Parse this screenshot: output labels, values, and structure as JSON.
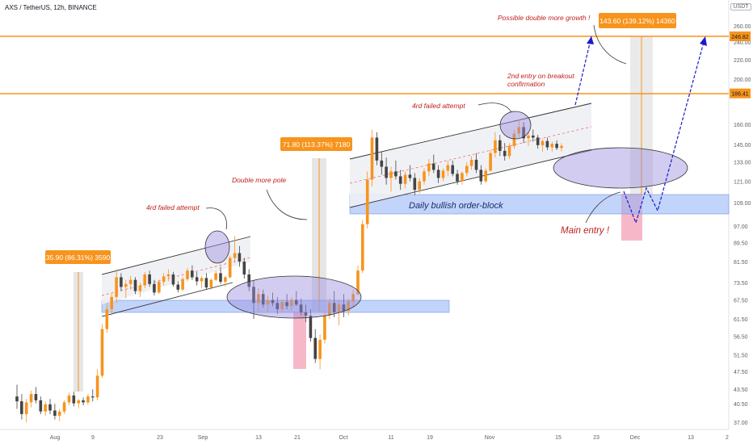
{
  "header": {
    "ticker_label": "AXS / TetherUS, 12h, BINANCE",
    "unit_badge": "USDT"
  },
  "colors": {
    "bull": "#f7941d",
    "bear": "#444444",
    "resistance": "#f7941d",
    "orderblock": "#8fb0f5",
    "ellipse": "#9c8fe0",
    "annotation_text": "#c0201c",
    "projection": "#1a1acc",
    "measure_label_bg": "#f7941d",
    "pole_bg": "#dcdcdc",
    "drawdown_bg": "#f3a0b6"
  },
  "chart_data": {
    "type": "candlestick",
    "title": "AXS / TetherUS, 12h, BINANCE",
    "y_scale": "log",
    "y_ticks": [
      "260.00",
      "240.00",
      "220.00",
      "200.00",
      "160.00",
      "145.00",
      "133.00",
      "121.00",
      "109.00",
      "97.00",
      "89.50",
      "81.50",
      "73.50",
      "67.50",
      "61.50",
      "56.50",
      "51.50",
      "47.50",
      "43.50",
      "40.50",
      "37.00"
    ],
    "y_tick_values": [
      260,
      240,
      220,
      200,
      160,
      145,
      133,
      121,
      109,
      97,
      89.5,
      81.5,
      73.5,
      67.5,
      61.5,
      56.5,
      51.5,
      47.5,
      43.5,
      40.5,
      37
    ],
    "x_ticks": [
      "Aug",
      "9",
      "23",
      "Sep",
      "13",
      "21",
      "Oct",
      "11",
      "19",
      "Nov",
      "15",
      "23",
      "Dec",
      "13",
      "2"
    ],
    "price_markers": [
      {
        "label": "246.82",
        "value": 246.82
      },
      {
        "label": "186.41",
        "value": 186.41
      }
    ],
    "series": [
      {
        "name": "",
        "ohlc": [
          [
            42.0,
            44.5,
            39.5,
            41.0
          ],
          [
            41.0,
            42.5,
            37.5,
            38.5
          ],
          [
            38.5,
            41.5,
            37.0,
            40.8
          ],
          [
            40.8,
            43.2,
            39.8,
            42.5
          ],
          [
            42.5,
            44.0,
            40.6,
            41.2
          ],
          [
            41.2,
            42.0,
            38.5,
            39.0
          ],
          [
            39.0,
            41.0,
            38.2,
            40.4
          ],
          [
            40.4,
            41.5,
            38.5,
            39.2
          ],
          [
            39.2,
            40.5,
            37.5,
            38.2
          ],
          [
            38.2,
            39.5,
            37.2,
            39.0
          ],
          [
            39.0,
            41.2,
            38.5,
            40.8
          ],
          [
            40.8,
            42.8,
            40.2,
            42.2
          ],
          [
            42.2,
            43.0,
            40.0,
            40.6
          ],
          [
            40.6,
            41.5,
            39.6,
            41.2
          ],
          [
            41.2,
            41.8,
            40.2,
            40.8
          ],
          [
            40.8,
            42.5,
            40.3,
            42.0
          ],
          [
            42.0,
            43.5,
            41.0,
            41.8
          ],
          [
            41.8,
            48.0,
            41.2,
            46.5
          ],
          [
            46.5,
            60.0,
            46.0,
            58.5
          ],
          [
            58.5,
            66.5,
            57.5,
            64.5
          ],
          [
            64.5,
            70.0,
            62.5,
            68.5
          ],
          [
            68.5,
            78.5,
            66.5,
            75.5
          ],
          [
            75.5,
            77.0,
            70.5,
            72.0
          ],
          [
            72.0,
            74.5,
            68.0,
            73.0
          ],
          [
            73.0,
            76.0,
            71.0,
            74.5
          ],
          [
            74.5,
            75.5,
            69.5,
            70.5
          ],
          [
            70.5,
            73.5,
            68.5,
            72.5
          ],
          [
            72.5,
            77.5,
            71.5,
            76.5
          ],
          [
            76.5,
            78.0,
            72.0,
            73.0
          ],
          [
            73.0,
            74.5,
            69.0,
            70.0
          ],
          [
            70.0,
            74.5,
            69.5,
            73.8
          ],
          [
            73.8,
            77.0,
            72.5,
            75.8
          ],
          [
            75.8,
            78.5,
            74.0,
            76.5
          ],
          [
            76.5,
            77.5,
            72.0,
            72.8
          ],
          [
            72.8,
            74.0,
            70.0,
            71.0
          ],
          [
            71.0,
            75.5,
            70.5,
            74.8
          ],
          [
            74.8,
            79.0,
            74.0,
            78.0
          ],
          [
            78.0,
            80.0,
            74.5,
            75.5
          ],
          [
            75.5,
            77.5,
            72.5,
            74.0
          ],
          [
            74.0,
            76.0,
            71.5,
            75.2
          ],
          [
            75.2,
            77.0,
            71.0,
            71.8
          ],
          [
            71.8,
            75.0,
            71.0,
            74.5
          ],
          [
            74.5,
            78.0,
            74.0,
            77.0
          ],
          [
            77.0,
            79.5,
            73.0,
            73.8
          ],
          [
            73.8,
            76.0,
            72.0,
            75.5
          ],
          [
            75.5,
            84.0,
            75.0,
            83.0
          ],
          [
            83.0,
            92.5,
            81.0,
            85.0
          ],
          [
            85.0,
            88.0,
            79.5,
            81.5
          ],
          [
            81.5,
            83.0,
            75.0,
            76.5
          ],
          [
            76.5,
            78.5,
            70.5,
            72.0
          ],
          [
            72.0,
            74.5,
            61.5,
            66.5
          ],
          [
            66.5,
            71.5,
            63.5,
            69.5
          ],
          [
            69.5,
            71.0,
            65.0,
            66.0
          ],
          [
            66.0,
            69.0,
            63.5,
            67.5
          ],
          [
            67.5,
            70.0,
            65.5,
            66.5
          ],
          [
            66.5,
            68.5,
            63.0,
            64.5
          ],
          [
            64.5,
            67.5,
            63.5,
            66.8
          ],
          [
            66.8,
            69.5,
            64.5,
            65.5
          ],
          [
            65.5,
            68.5,
            64.0,
            67.5
          ],
          [
            67.5,
            70.5,
            65.5,
            66.0
          ],
          [
            66.0,
            68.0,
            62.5,
            63.5
          ],
          [
            63.5,
            66.0,
            60.5,
            62.5
          ],
          [
            62.5,
            64.5,
            55.0,
            56.0
          ],
          [
            56.0,
            58.5,
            49.5,
            50.5
          ],
          [
            50.5,
            57.0,
            48.0,
            55.5
          ],
          [
            55.5,
            64.0,
            54.5,
            62.5
          ],
          [
            62.5,
            68.0,
            61.5,
            66.5
          ],
          [
            66.5,
            70.5,
            62.0,
            63.5
          ],
          [
            63.5,
            67.5,
            59.5,
            66.0
          ],
          [
            66.0,
            69.5,
            62.0,
            64.0
          ],
          [
            64.0,
            68.0,
            62.5,
            67.0
          ],
          [
            67.0,
            71.0,
            65.0,
            69.5
          ],
          [
            69.5,
            80.0,
            69.0,
            78.0
          ],
          [
            78.0,
            100.0,
            77.0,
            98.0
          ],
          [
            98.0,
            127.0,
            96.0,
            122.0
          ],
          [
            122.0,
            156.0,
            118.0,
            150.0
          ],
          [
            150.0,
            154.0,
            131.0,
            134.0
          ],
          [
            134.0,
            140.0,
            125.0,
            130.0
          ],
          [
            130.0,
            136.0,
            119.0,
            123.0
          ],
          [
            123.0,
            130.0,
            115.0,
            127.0
          ],
          [
            127.0,
            134.0,
            122.0,
            124.0
          ],
          [
            124.0,
            128.0,
            116.0,
            119.5
          ],
          [
            119.5,
            127.0,
            117.0,
            125.0
          ],
          [
            125.0,
            131.0,
            121.0,
            123.0
          ],
          [
            123.0,
            126.0,
            113.0,
            116.0
          ],
          [
            116.0,
            123.0,
            114.0,
            121.0
          ],
          [
            121.0,
            129.0,
            119.0,
            127.0
          ],
          [
            127.0,
            135.0,
            124.0,
            132.0
          ],
          [
            132.0,
            138.0,
            126.0,
            128.0
          ],
          [
            128.0,
            131.0,
            120.0,
            123.0
          ],
          [
            123.0,
            129.0,
            121.0,
            127.5
          ],
          [
            127.5,
            134.0,
            124.0,
            131.0
          ],
          [
            131.0,
            134.0,
            124.0,
            125.5
          ],
          [
            125.5,
            128.0,
            119.0,
            121.0
          ],
          [
            121.0,
            127.0,
            119.0,
            126.0
          ],
          [
            126.0,
            133.0,
            124.0,
            130.5
          ],
          [
            130.5,
            137.0,
            128.0,
            134.5
          ],
          [
            134.5,
            139.0,
            126.0,
            128.0
          ],
          [
            128.0,
            131.0,
            119.0,
            121.0
          ],
          [
            121.0,
            129.0,
            120.0,
            127.5
          ],
          [
            127.5,
            141.0,
            127.0,
            139.0
          ],
          [
            139.0,
            154.0,
            136.0,
            148.0
          ],
          [
            148.0,
            152.0,
            137.0,
            140.5
          ],
          [
            140.5,
            146.0,
            134.0,
            137.0
          ],
          [
            137.0,
            146.0,
            135.0,
            144.0
          ],
          [
            144.0,
            156.0,
            142.0,
            153.0
          ],
          [
            153.0,
            164.0,
            150.0,
            158.0
          ],
          [
            158.0,
            162.0,
            146.0,
            149.5
          ],
          [
            149.5,
            154.0,
            144.0,
            151.5
          ],
          [
            151.5,
            156.0,
            147.0,
            150.0
          ],
          [
            150.0,
            152.0,
            142.0,
            144.5
          ],
          [
            144.5,
            149.0,
            140.0,
            147.5
          ],
          [
            147.5,
            150.0,
            141.0,
            143.0
          ],
          [
            143.0,
            147.0,
            140.0,
            145.5
          ],
          [
            145.5,
            148.0,
            141.0,
            142.5
          ],
          [
            142.5,
            146.0,
            140.0,
            144.0
          ]
        ]
      }
    ],
    "annotations": [
      "Possible double more growth !",
      "2nd entry on breakout confirmation",
      "4rd failed attempt",
      "4rd failed attempt",
      "Double more pole",
      "Daily bullish order-block",
      "Main entry !"
    ],
    "measurements": [
      {
        "label": "35.90 (86.31%) 3590",
        "from": 41.6,
        "to": 77.5
      },
      {
        "label": "71.80 (113.37%) 7180",
        "from": 63.3,
        "to": 135.1
      },
      {
        "label": "143.60 (139.12%) 14360",
        "from": 103.2,
        "to": 246.8
      }
    ],
    "legend": "none",
    "grid": false
  }
}
